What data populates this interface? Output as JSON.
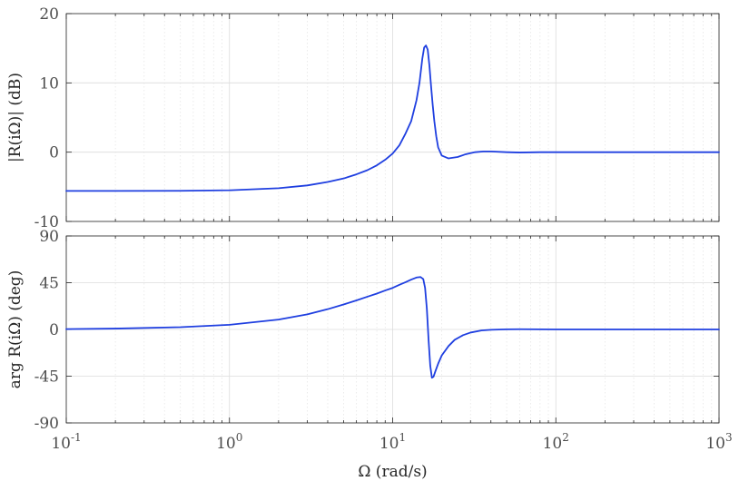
{
  "chart_data": [
    {
      "type": "line",
      "panel": "magnitude",
      "xscale": "log",
      "xlim": [
        0.1,
        1000
      ],
      "ylim": [
        -10,
        20
      ],
      "yticks": [
        -10,
        0,
        10,
        20
      ],
      "ytick_labels": [
        "-10",
        "0",
        "10",
        "20"
      ],
      "ylabel": "|R(iΩ)| (dB)",
      "xlabel": "",
      "grid": true,
      "line_color": "#1f3fe0",
      "series": [
        {
          "x": [
            0.1,
            0.2,
            0.5,
            1,
            2,
            3,
            4,
            5,
            6,
            7,
            8,
            9,
            10,
            11,
            12,
            13,
            14,
            14.6,
            15.2,
            15.6,
            16,
            16.4,
            16.8,
            17.2,
            17.6,
            18,
            18.5,
            19,
            20,
            22,
            25,
            28,
            32,
            36,
            40,
            50,
            60,
            80,
            100,
            200,
            500,
            1000
          ],
          "y": [
            -5.6,
            -5.6,
            -5.58,
            -5.5,
            -5.2,
            -4.8,
            -4.3,
            -3.8,
            -3.2,
            -2.6,
            -1.9,
            -1.1,
            -0.2,
            1.0,
            2.7,
            4.5,
            7.5,
            10.0,
            13.5,
            15.1,
            15.4,
            14.8,
            12.5,
            9.5,
            6.8,
            4.5,
            2.3,
            0.7,
            -0.5,
            -0.9,
            -0.7,
            -0.3,
            0.0,
            0.1,
            0.1,
            0.0,
            -0.05,
            0.0,
            0.0,
            0.0,
            0.0,
            0.0
          ]
        }
      ]
    },
    {
      "type": "line",
      "panel": "phase",
      "xscale": "log",
      "xlim": [
        0.1,
        1000
      ],
      "ylim": [
        -90,
        90
      ],
      "yticks": [
        -90,
        -45,
        0,
        45,
        90
      ],
      "ytick_labels": [
        "-90",
        "-45",
        "0",
        "45",
        "90"
      ],
      "ylabel": "arg R(iΩ) (deg)",
      "xlabel": "Ω (rad/s)",
      "xtick_bases": [
        "10",
        "10",
        "10",
        "10",
        "10"
      ],
      "xtick_exponents": [
        "-1",
        "0",
        "1",
        "2",
        "3"
      ],
      "xticks": [
        0.1,
        1,
        10,
        100,
        1000
      ],
      "grid": true,
      "line_color": "#1f3fe0",
      "series": [
        {
          "x": [
            0.1,
            0.2,
            0.5,
            1,
            2,
            3,
            4,
            5,
            6,
            7,
            8,
            9,
            10,
            11,
            12,
            13,
            14,
            14.8,
            15.4,
            15.8,
            16.2,
            16.6,
            17,
            17.4,
            17.8,
            18.3,
            19,
            20,
            22,
            24,
            27,
            30,
            35,
            40,
            50,
            60,
            80,
            100,
            200,
            500,
            1000
          ],
          "y": [
            0.3,
            0.8,
            2.2,
            4.5,
            9.5,
            14.5,
            19.5,
            24.0,
            28.0,
            31.5,
            34.5,
            37.5,
            40.0,
            43.0,
            45.5,
            48.0,
            50.0,
            50.5,
            48.5,
            40.0,
            20.0,
            -10.0,
            -35.0,
            -46.5,
            -45.5,
            -40.0,
            -33.0,
            -25.0,
            -16.0,
            -10.0,
            -5.5,
            -3.0,
            -1.0,
            -0.3,
            0.1,
            0.2,
            0.1,
            0.0,
            0.0,
            0.0,
            0.0
          ]
        }
      ]
    }
  ]
}
